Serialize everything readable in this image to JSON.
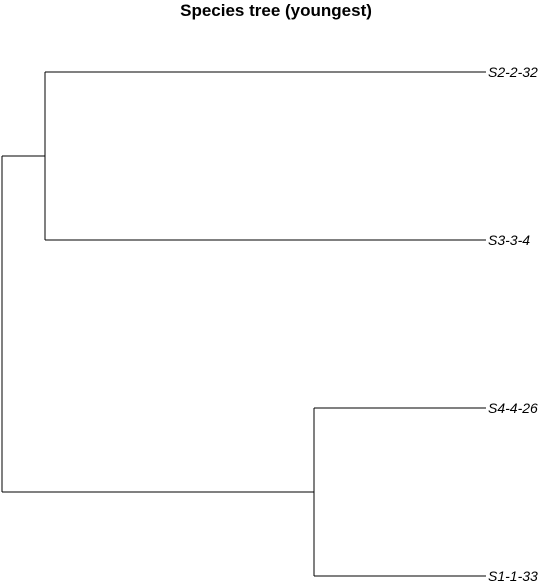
{
  "title": "Species tree (youngest)",
  "tree": {
    "tips": [
      {
        "id": "t1",
        "label": "S2-2-32"
      },
      {
        "id": "t2",
        "label": "S3-3-4"
      },
      {
        "id": "t3",
        "label": "S4-4-26"
      },
      {
        "id": "t4",
        "label": "S1-1-33"
      }
    ],
    "clades": [
      {
        "id": "c-upper",
        "children": [
          "t1",
          "t2"
        ]
      },
      {
        "id": "c-lower",
        "children": [
          "t3",
          "t4"
        ]
      },
      {
        "id": "root",
        "children": [
          "c-upper",
          "c-lower"
        ]
      }
    ],
    "line_color": "#000000"
  }
}
